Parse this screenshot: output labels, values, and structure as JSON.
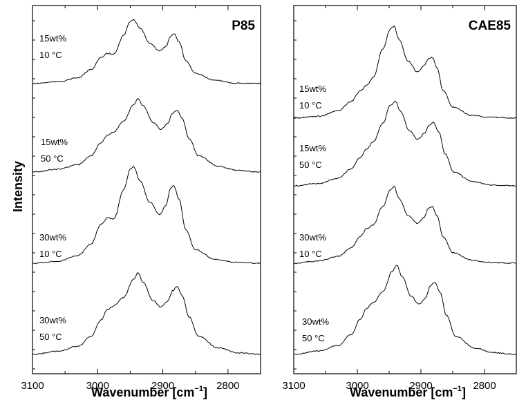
{
  "ylabel": "Intensity",
  "chart_data": [
    {
      "type": "line",
      "title": "P85",
      "xlabel_main": "Wavenumber [cm",
      "xlabel_sup": "−1",
      "xlabel_end": "]",
      "ylabel": "Intensity",
      "xlim": [
        3100,
        2750
      ],
      "x_reversed": true,
      "xticks": [
        3100,
        3000,
        2900,
        2800
      ],
      "grid": false,
      "series": [
        {
          "ann1": "15wt%",
          "ann2": "10 °C",
          "x": [
            3100,
            3060,
            3030,
            3010,
            2995,
            2985,
            2975,
            2960,
            2950,
            2945,
            2935,
            2920,
            2905,
            2895,
            2888,
            2883,
            2875,
            2865,
            2850,
            2820,
            2790,
            2750
          ],
          "rel": [
            0,
            0.03,
            0.09,
            0.22,
            0.4,
            0.47,
            0.46,
            0.75,
            0.97,
            1.0,
            0.86,
            0.63,
            0.51,
            0.58,
            0.74,
            0.78,
            0.65,
            0.36,
            0.16,
            0.05,
            0.01,
            0
          ]
        },
        {
          "ann1": "15wt%",
          "ann2": "50 °C",
          "x": [
            3100,
            3060,
            3030,
            3010,
            2995,
            2985,
            2975,
            2960,
            2945,
            2938,
            2930,
            2915,
            2903,
            2893,
            2885,
            2878,
            2870,
            2860,
            2845,
            2815,
            2785,
            2750
          ],
          "rel": [
            0,
            0.04,
            0.1,
            0.22,
            0.4,
            0.5,
            0.55,
            0.7,
            0.92,
            1.0,
            0.9,
            0.68,
            0.58,
            0.66,
            0.8,
            0.84,
            0.73,
            0.46,
            0.22,
            0.08,
            0.02,
            0
          ]
        },
        {
          "ann1": "30wt%",
          "ann2": "10 °C",
          "x": [
            3100,
            3060,
            3030,
            3010,
            2995,
            2985,
            2975,
            2960,
            2950,
            2945,
            2935,
            2920,
            2905,
            2895,
            2888,
            2883,
            2875,
            2865,
            2850,
            2820,
            2790,
            2750
          ],
          "rel": [
            0,
            0.02,
            0.08,
            0.2,
            0.4,
            0.47,
            0.46,
            0.76,
            0.97,
            1.0,
            0.85,
            0.63,
            0.5,
            0.6,
            0.78,
            0.8,
            0.66,
            0.35,
            0.14,
            0.04,
            0.01,
            0
          ]
        },
        {
          "ann1": "30wt%",
          "ann2": "50 °C",
          "x": [
            3100,
            3060,
            3030,
            3010,
            2995,
            2985,
            2975,
            2960,
            2945,
            2938,
            2930,
            2915,
            2903,
            2893,
            2885,
            2878,
            2870,
            2860,
            2845,
            2815,
            2785,
            2750
          ],
          "rel": [
            0,
            0.04,
            0.1,
            0.22,
            0.42,
            0.55,
            0.6,
            0.7,
            0.92,
            1.0,
            0.88,
            0.66,
            0.58,
            0.65,
            0.78,
            0.83,
            0.72,
            0.46,
            0.22,
            0.08,
            0.02,
            0
          ]
        }
      ]
    },
    {
      "type": "line",
      "title": "CAE85",
      "xlabel_main": "Wavenumber [cm",
      "xlabel_sup": "−1",
      "xlabel_end": "]",
      "xlim": [
        3100,
        2750
      ],
      "x_reversed": true,
      "xticks": [
        3100,
        3000,
        2900,
        2800
      ],
      "grid": false,
      "series": [
        {
          "ann1": "15wt%",
          "ann2": "10 °C",
          "x": [
            3100,
            3060,
            3030,
            3010,
            2995,
            2985,
            2975,
            2960,
            2948,
            2942,
            2935,
            2920,
            2905,
            2895,
            2888,
            2882,
            2875,
            2865,
            2850,
            2820,
            2790,
            2750
          ],
          "rel": [
            0,
            0.02,
            0.08,
            0.18,
            0.3,
            0.36,
            0.44,
            0.75,
            0.97,
            1.0,
            0.86,
            0.62,
            0.5,
            0.57,
            0.65,
            0.66,
            0.55,
            0.3,
            0.12,
            0.03,
            0.01,
            0
          ]
        },
        {
          "ann1": "15wt%",
          "ann2": "50 °C",
          "x": [
            3100,
            3060,
            3030,
            3010,
            2995,
            2985,
            2975,
            2960,
            2948,
            2940,
            2932,
            2918,
            2905,
            2895,
            2887,
            2880,
            2872,
            2862,
            2848,
            2818,
            2788,
            2750
          ],
          "rel": [
            0,
            0.03,
            0.09,
            0.2,
            0.34,
            0.44,
            0.52,
            0.74,
            0.96,
            1.0,
            0.88,
            0.65,
            0.55,
            0.62,
            0.72,
            0.75,
            0.64,
            0.38,
            0.16,
            0.05,
            0.01,
            0
          ]
        },
        {
          "ann1": "30wt%",
          "ann2": "10 °C",
          "x": [
            3100,
            3060,
            3030,
            3010,
            2995,
            2985,
            2975,
            2960,
            2948,
            2942,
            2935,
            2920,
            2905,
            2895,
            2888,
            2882,
            2875,
            2865,
            2850,
            2820,
            2790,
            2750
          ],
          "rel": [
            0,
            0.03,
            0.09,
            0.2,
            0.35,
            0.45,
            0.5,
            0.74,
            0.96,
            1.0,
            0.85,
            0.62,
            0.52,
            0.6,
            0.72,
            0.74,
            0.62,
            0.34,
            0.14,
            0.04,
            0.01,
            0
          ]
        },
        {
          "ann1": "30wt%",
          "ann2": "50 °C",
          "x": [
            3100,
            3060,
            3030,
            3010,
            2995,
            2985,
            2975,
            2960,
            2945,
            2938,
            2930,
            2915,
            2903,
            2893,
            2885,
            2878,
            2870,
            2860,
            2845,
            2815,
            2785,
            2750
          ],
          "rel": [
            0,
            0.04,
            0.1,
            0.22,
            0.4,
            0.52,
            0.58,
            0.7,
            0.93,
            1.0,
            0.88,
            0.65,
            0.56,
            0.63,
            0.77,
            0.81,
            0.7,
            0.44,
            0.2,
            0.07,
            0.02,
            0
          ]
        }
      ]
    }
  ]
}
